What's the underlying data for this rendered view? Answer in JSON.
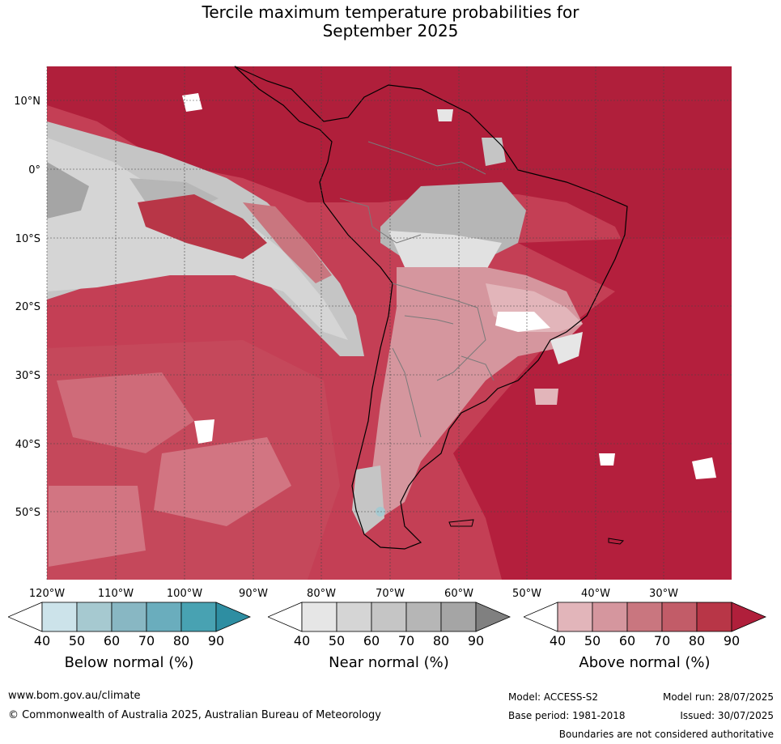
{
  "title_line1": "Tercile maximum temperature probabilities for",
  "title_line2": "September 2025",
  "map": {
    "lat_labels": [
      "10°N",
      "0°",
      "10°S",
      "20°S",
      "30°S",
      "40°S",
      "50°S"
    ],
    "lon_labels": [
      "120°W",
      "110°W",
      "100°W",
      "90°W",
      "80°W",
      "70°W",
      "60°W",
      "50°W",
      "40°W",
      "30°W"
    ]
  },
  "legends": [
    {
      "label": "Below normal (%)",
      "ticks": [
        "40",
        "50",
        "60",
        "70",
        "80",
        "90"
      ],
      "colors": [
        "#ffffff",
        "#cce3ea",
        "#a6c9d0",
        "#88b7c3",
        "#6aadbd",
        "#48a2b2",
        "#2e8ea2"
      ]
    },
    {
      "label": "Near normal (%)",
      "ticks": [
        "40",
        "50",
        "60",
        "70",
        "80",
        "90"
      ],
      "colors": [
        "#ffffff",
        "#e6e6e6",
        "#d5d5d5",
        "#c5c5c5",
        "#b6b6b6",
        "#a5a5a5",
        "#808080"
      ]
    },
    {
      "label": "Above normal (%)",
      "ticks": [
        "40",
        "50",
        "60",
        "70",
        "80",
        "90"
      ],
      "colors": [
        "#ffffff",
        "#e2b5ba",
        "#d5969e",
        "#c9767f",
        "#c25c68",
        "#b83647",
        "#b01f3b"
      ]
    }
  ],
  "footer": {
    "website": "www.bom.gov.au/climate",
    "copyright": "© Commonwealth of Australia 2025, Australian Bureau of Meteorology",
    "model": "Model: ACCESS-S2",
    "base_period": "Base period: 1981-2018",
    "model_run": "Model run: 28/07/2025",
    "issued": "Issued: 30/07/2025",
    "disclaimer": "Boundaries are not considered authoritative"
  }
}
